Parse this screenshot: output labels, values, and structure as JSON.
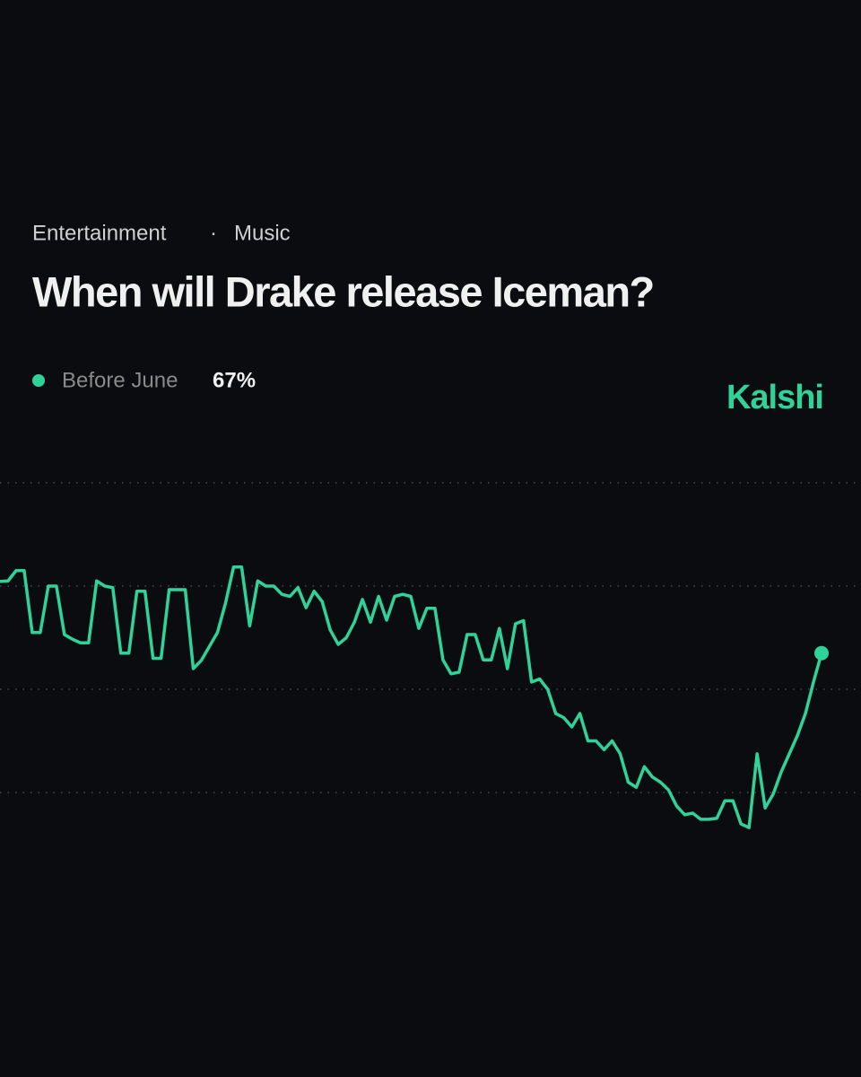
{
  "chart_data": {
    "type": "line",
    "breadcrumbs": [
      "Entertainment",
      "Music"
    ],
    "separator": "·",
    "title": "When will Drake release Iceman?",
    "brand": "Kalshi",
    "series": [
      {
        "name": "Before June",
        "color": "#2fd39a",
        "current_label": "67%",
        "values": [
          80.9,
          81,
          83,
          83,
          71,
          71,
          80,
          80,
          70.6,
          69.7,
          69,
          69,
          81,
          80,
          79.7,
          67,
          67,
          79,
          79,
          66,
          66,
          79.3,
          79.3,
          79.3,
          64,
          65.6,
          68.3,
          71,
          76.7,
          83.7,
          83.7,
          72.3,
          81,
          80,
          80,
          78.4,
          78,
          79.7,
          75.8,
          79,
          77,
          71.5,
          68.7,
          70,
          73,
          77.4,
          73,
          78,
          73.4,
          78,
          78.4,
          78,
          71.8,
          75.7,
          75.7,
          65.7,
          63,
          63.3,
          70.6,
          70.6,
          65.7,
          65.7,
          71.8,
          64,
          72.7,
          73.3,
          61.4,
          62,
          60,
          55.3,
          54.5,
          52.7,
          55.3,
          50,
          50,
          48.3,
          50,
          47.5,
          42,
          41,
          45,
          43,
          42,
          40.5,
          37.4,
          35.7,
          36,
          34.8,
          34.8,
          35,
          38.4,
          38.4,
          33.9,
          33.2,
          47.5,
          37,
          39.7,
          44,
          47.5,
          51,
          55.3,
          61.4,
          67
        ]
      }
    ],
    "ylim": [
      30,
      100
    ],
    "yticks": [
      40,
      60,
      80,
      100
    ],
    "grid": true
  }
}
